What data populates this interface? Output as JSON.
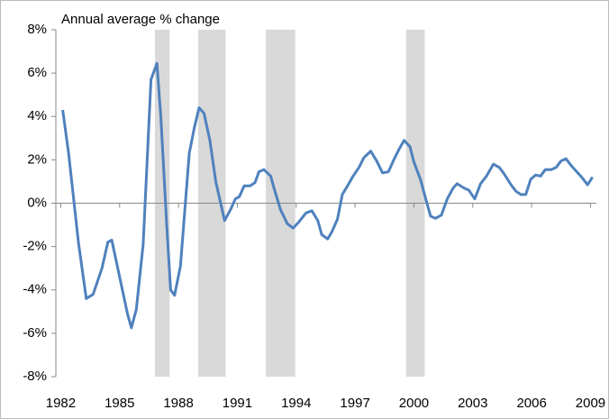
{
  "chart_data": {
    "type": "line",
    "annotation": "Annual average % change",
    "x": [
      1982.1,
      1982.4,
      1982.9,
      1983.3,
      1983.65,
      1984.1,
      1984.4,
      1984.6,
      1985.0,
      1985.4,
      1985.6,
      1985.85,
      1986.2,
      1986.6,
      1986.9,
      1987.1,
      1987.4,
      1987.6,
      1987.8,
      1988.1,
      1988.55,
      1988.8,
      1989.05,
      1989.3,
      1989.6,
      1989.9,
      1990.35,
      1990.65,
      1990.9,
      1991.1,
      1991.35,
      1991.65,
      1991.9,
      1992.1,
      1992.35,
      1992.7,
      1992.9,
      1993.2,
      1993.55,
      1993.85,
      1994.15,
      1994.5,
      1994.8,
      1995.1,
      1995.3,
      1995.6,
      1995.8,
      1996.1,
      1996.35,
      1996.65,
      1996.9,
      1997.2,
      1997.45,
      1997.8,
      1998.1,
      1998.4,
      1998.7,
      1999.0,
      1999.25,
      1999.5,
      1999.8,
      2000.0,
      2000.35,
      2000.6,
      2000.85,
      2001.1,
      2001.4,
      2001.7,
      2002.0,
      2002.2,
      2002.55,
      2002.8,
      2003.1,
      2003.4,
      2003.7,
      2004.05,
      2004.35,
      2004.6,
      2004.95,
      2005.2,
      2005.45,
      2005.7,
      2005.95,
      2006.2,
      2006.45,
      2006.7,
      2007.0,
      2007.25,
      2007.5,
      2007.75,
      2008.0,
      2008.3,
      2008.55,
      2008.85,
      2009.1
    ],
    "series": [
      {
        "color": "#4f81bd",
        "values": [
          4.3,
          2.3,
          -1.8,
          -4.4,
          -4.2,
          -3.0,
          -1.8,
          -1.7,
          -3.4,
          -5.1,
          -5.75,
          -4.9,
          -1.9,
          5.7,
          6.45,
          4.0,
          -1.0,
          -4.0,
          -4.25,
          -2.9,
          2.3,
          3.45,
          4.4,
          4.15,
          2.9,
          1.0,
          -0.8,
          -0.3,
          0.2,
          0.3,
          0.8,
          0.8,
          0.95,
          1.45,
          1.55,
          1.25,
          0.6,
          -0.3,
          -0.95,
          -1.15,
          -0.85,
          -0.45,
          -0.35,
          -0.8,
          -1.45,
          -1.65,
          -1.35,
          -0.75,
          0.4,
          0.85,
          1.25,
          1.65,
          2.1,
          2.4,
          1.95,
          1.4,
          1.45,
          2.05,
          2.5,
          2.9,
          2.6,
          1.9,
          1.05,
          0.2,
          -0.6,
          -0.7,
          -0.55,
          0.2,
          0.7,
          0.9,
          0.7,
          0.6,
          0.2,
          0.9,
          1.25,
          1.8,
          1.65,
          1.35,
          0.85,
          0.55,
          0.4,
          0.4,
          1.1,
          1.3,
          1.25,
          1.55,
          1.55,
          1.65,
          1.95,
          2.05,
          1.75,
          1.45,
          1.2,
          0.85,
          1.2
        ]
      }
    ],
    "shaded_ranges": [
      [
        1986.8,
        1987.55
      ],
      [
        1989.0,
        1990.4
      ],
      [
        1992.45,
        1993.95
      ],
      [
        1999.6,
        2000.55
      ]
    ],
    "shade_color": "#d9d9d9",
    "xlim": [
      1981.75,
      2009.3
    ],
    "xticks": [
      1982,
      1985,
      1988,
      1991,
      1994,
      1997,
      2000,
      2003,
      2006,
      2009
    ],
    "ylim": [
      -8,
      8
    ],
    "yticks": [
      {
        "value": -8,
        "label": "-8%"
      },
      {
        "value": -6,
        "label": "-6%"
      },
      {
        "value": -4,
        "label": "-4%"
      },
      {
        "value": -2,
        "label": "-2%"
      },
      {
        "value": 0,
        "label": "0%"
      },
      {
        "value": 2,
        "label": "2%"
      },
      {
        "value": 4,
        "label": "4%"
      },
      {
        "value": 6,
        "label": "6%"
      },
      {
        "value": 8,
        "label": "8%"
      }
    ],
    "grid": false
  }
}
